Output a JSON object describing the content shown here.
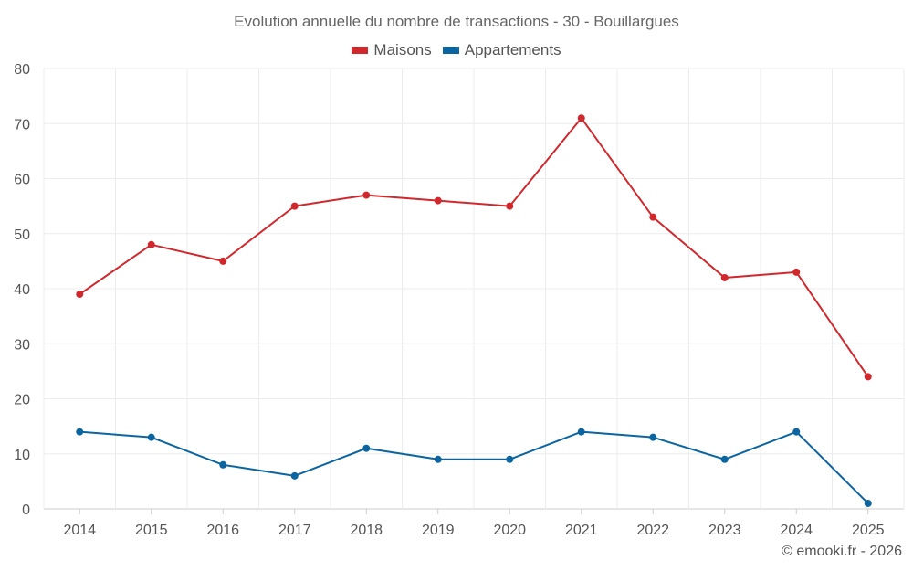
{
  "chart_data": {
    "type": "line",
    "title": "Evolution annuelle du nombre de transactions - 30 - Bouillargues",
    "categories": [
      "2014",
      "2015",
      "2016",
      "2017",
      "2018",
      "2019",
      "2020",
      "2021",
      "2022",
      "2023",
      "2024",
      "2025"
    ],
    "series": [
      {
        "name": "Maisons",
        "color": "#d0282d",
        "values": [
          39,
          48,
          45,
          55,
          57,
          56,
          55,
          71,
          53,
          42,
          43,
          24
        ]
      },
      {
        "name": "Appartements",
        "color": "#0b65a0",
        "values": [
          14,
          13,
          8,
          6,
          11,
          9,
          9,
          14,
          13,
          9,
          14,
          1
        ]
      }
    ],
    "ylim": [
      0,
      80
    ],
    "yticks": [
      0,
      10,
      20,
      30,
      40,
      50,
      60,
      70,
      80
    ],
    "xlabel": "",
    "ylabel": "",
    "grid": true,
    "legend": "top-center"
  },
  "footer": {
    "credit": "© emooki.fr - 2026"
  }
}
